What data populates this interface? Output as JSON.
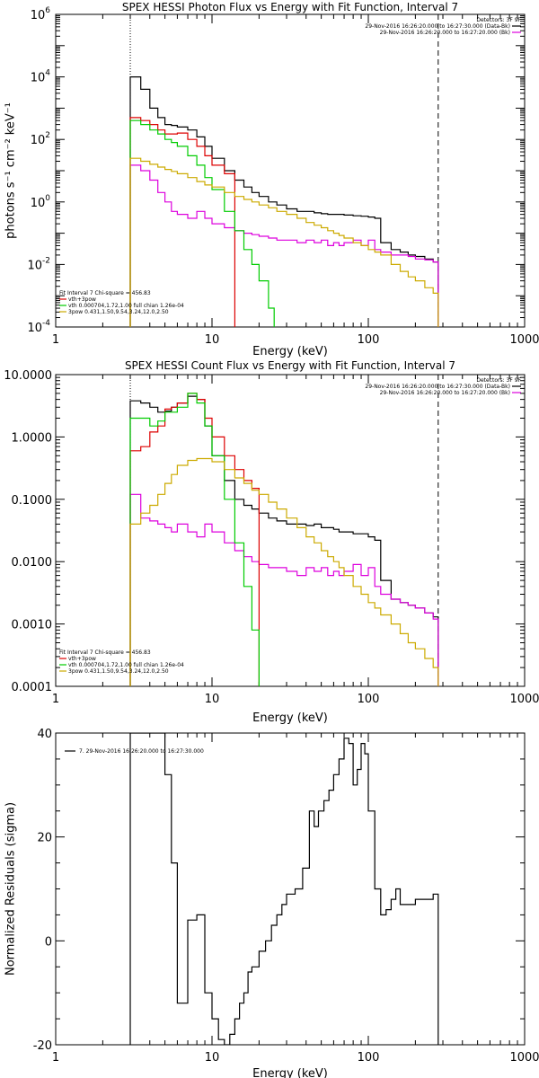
{
  "chart_data": [
    {
      "type": "line",
      "title": "SPEX HESSI Photon Flux vs Energy with Fit Function, Interval 7",
      "xlabel": "Energy (keV)",
      "ylabel": "photons s⁻¹ cm⁻² keV⁻¹",
      "xscale": "log",
      "yscale": "log",
      "xlim": [
        1,
        1000
      ],
      "ylim": [
        0.0001,
        1000000
      ],
      "xticks": [
        {
          "value": 1,
          "label": "1"
        },
        {
          "value": 10,
          "label": "10"
        },
        {
          "value": 100,
          "label": "100"
        },
        {
          "value": 1000,
          "label": "1000"
        }
      ],
      "yticks": [
        {
          "value": 0.0001,
          "base": "10",
          "exp": "-4"
        },
        {
          "value": 0.01,
          "base": "10",
          "exp": "-2"
        },
        {
          "value": 1,
          "base": "10",
          "exp": "0"
        },
        {
          "value": 100,
          "base": "10",
          "exp": "2"
        },
        {
          "value": 10000,
          "base": "10",
          "exp": "4"
        },
        {
          "value": 1000000,
          "base": "10",
          "exp": "6"
        }
      ],
      "vlines": [
        {
          "x": 3,
          "style": "dotted"
        },
        {
          "x": 280,
          "style": "dashed"
        }
      ],
      "legend_right": {
        "position": "top-right",
        "header": "Detectors: 3F 9F",
        "entries": [
          {
            "text": "29-Nov-2016 16:26:20.000 to 16:27:30.000 (Data-Bk)",
            "color": "#000000"
          },
          {
            "text": "29-Nov-2016 16:26:20.000 to 16:27:20.000 (Bk)",
            "color": "#dd00dd"
          }
        ]
      },
      "legend_left": {
        "position": "bottom-left",
        "header": "Fit Interval 7   Chi-square = 456.83",
        "entries": [
          {
            "text": "vth+3pow",
            "color": "#dd0000"
          },
          {
            "text": "vth 0.000704,1.72,1.00   full chian 1.26e-04",
            "color": "#00cc00"
          },
          {
            "text": "3pow 0.431,1.50,9.54,3.24,12.0,2.50",
            "color": "#ccaa00"
          }
        ]
      },
      "series": [
        {
          "color": "#000000",
          "x": [
            3,
            3.5,
            4,
            4.5,
            5,
            5.5,
            6,
            7,
            8,
            9,
            10,
            12,
            14,
            16,
            18,
            20,
            23,
            26,
            30,
            35,
            40,
            45,
            50,
            55,
            60,
            65,
            70,
            80,
            90,
            100,
            110,
            120,
            140,
            160,
            180,
            200,
            230,
            260,
            280
          ],
          "y": [
            10000,
            4000,
            1000,
            500,
            300,
            280,
            250,
            200,
            120,
            60,
            25,
            10,
            5,
            3,
            2,
            1.5,
            1,
            0.8,
            0.6,
            0.5,
            0.5,
            0.45,
            0.42,
            0.4,
            0.4,
            0.4,
            0.38,
            0.36,
            0.35,
            0.33,
            0.3,
            0.05,
            0.03,
            0.025,
            0.02,
            0.018,
            0.015,
            0.012,
            0.012
          ]
        },
        {
          "color": "#dd00dd",
          "x": [
            3,
            3.5,
            4,
            4.5,
            5,
            5.5,
            6,
            7,
            8,
            9,
            10,
            12,
            14,
            16,
            18,
            20,
            23,
            26,
            30,
            35,
            40,
            45,
            50,
            55,
            60,
            65,
            70,
            80,
            90,
            100,
            110,
            120,
            140,
            160,
            180,
            200,
            230,
            260,
            280
          ],
          "y": [
            15,
            10,
            5,
            2,
            1,
            0.5,
            0.4,
            0.3,
            0.5,
            0.3,
            0.2,
            0.15,
            0.12,
            0.1,
            0.09,
            0.08,
            0.07,
            0.06,
            0.06,
            0.05,
            0.06,
            0.05,
            0.06,
            0.04,
            0.05,
            0.04,
            0.05,
            0.06,
            0.04,
            0.06,
            0.03,
            0.025,
            0.02,
            0.02,
            0.018,
            0.015,
            0.014,
            0.012,
            0.012
          ]
        },
        {
          "color": "#dd0000",
          "x": [
            3,
            3.5,
            4,
            4.5,
            5,
            5.5,
            6,
            7,
            8,
            9,
            10,
            12,
            14
          ],
          "y": [
            500,
            400,
            300,
            200,
            150,
            150,
            160,
            100,
            60,
            30,
            15,
            8,
            5
          ]
        },
        {
          "color": "#00cc00",
          "x": [
            3,
            3.5,
            4,
            4.5,
            5,
            5.5,
            6,
            7,
            8,
            9,
            10,
            12,
            14,
            16,
            18,
            20,
            23,
            25
          ],
          "y": [
            400,
            300,
            200,
            150,
            100,
            80,
            60,
            30,
            15,
            6,
            2.5,
            0.5,
            0.12,
            0.03,
            0.01,
            0.003,
            0.0004,
            0.0001
          ]
        },
        {
          "color": "#ccaa00",
          "x": [
            3,
            3.5,
            4,
            4.5,
            5,
            5.5,
            6,
            7,
            8,
            9,
            10,
            12,
            14,
            16,
            18,
            20,
            23,
            26,
            30,
            35,
            40,
            45,
            50,
            55,
            60,
            65,
            70,
            80,
            90,
            100,
            110,
            120,
            140,
            160,
            180,
            200,
            230,
            260,
            280
          ],
          "y": [
            25,
            20,
            16,
            13,
            11,
            9.5,
            8,
            6,
            4.5,
            3.5,
            3,
            2,
            1.5,
            1.2,
            1,
            0.8,
            0.65,
            0.5,
            0.4,
            0.3,
            0.22,
            0.18,
            0.15,
            0.12,
            0.1,
            0.085,
            0.07,
            0.05,
            0.04,
            0.03,
            0.025,
            0.02,
            0.01,
            0.006,
            0.004,
            0.003,
            0.0018,
            0.0012,
            0.0009
          ]
        }
      ]
    },
    {
      "type": "line",
      "title": "SPEX HESSI Count Flux vs Energy with Fit Function, Interval 7",
      "xlabel": "Energy (keV)",
      "ylabel": "",
      "xscale": "log",
      "yscale": "log",
      "xlim": [
        1,
        1000
      ],
      "ylim": [
        0.0001,
        10
      ],
      "xticks": [
        {
          "value": 1,
          "label": "1"
        },
        {
          "value": 10,
          "label": "10"
        },
        {
          "value": 100,
          "label": "100"
        },
        {
          "value": 1000,
          "label": "1000"
        }
      ],
      "yticks": [
        {
          "value": 0.0001,
          "label": "0.0001"
        },
        {
          "value": 0.001,
          "label": "0.0010"
        },
        {
          "value": 0.01,
          "label": "0.0100"
        },
        {
          "value": 0.1,
          "label": "0.1000"
        },
        {
          "value": 1,
          "label": "1.0000"
        },
        {
          "value": 10,
          "label": "10.0000"
        }
      ],
      "vlines": [
        {
          "x": 3,
          "style": "dotted"
        },
        {
          "x": 280,
          "style": "dashed"
        }
      ],
      "legend_right": {
        "position": "top-right",
        "header": "Detectors: 3F 9F",
        "entries": [
          {
            "text": "29-Nov-2016 16:26:20.000 to 16:27:30.000 (Data-Bk)",
            "color": "#000000"
          },
          {
            "text": "29-Nov-2016 16:26:20.000 to 16:27:20.000 (Bk)",
            "color": "#dd00dd"
          }
        ]
      },
      "legend_left": {
        "position": "bottom-left",
        "header": "Fit Interval 7   Chi-square = 456.83",
        "entries": [
          {
            "text": "vth+3pow",
            "color": "#dd0000"
          },
          {
            "text": "vth 0.000704,1.72,1.00   full chian 1.26e-04",
            "color": "#00cc00"
          },
          {
            "text": "3pow 0.431,1.50,9.54,3.24,12.0,2.50",
            "color": "#ccaa00"
          }
        ]
      },
      "series": [
        {
          "color": "#000000",
          "x": [
            3,
            3.5,
            4,
            4.5,
            5,
            5.5,
            6,
            7,
            8,
            9,
            10,
            12,
            14,
            16,
            18,
            20,
            23,
            26,
            30,
            35,
            40,
            45,
            50,
            55,
            60,
            65,
            70,
            80,
            90,
            100,
            110,
            120,
            140,
            160,
            180,
            200,
            230,
            260,
            280
          ],
          "y": [
            3.8,
            3.5,
            3,
            2.5,
            2.6,
            3,
            3.5,
            4.5,
            4,
            1.5,
            0.5,
            0.2,
            0.1,
            0.08,
            0.07,
            0.06,
            0.05,
            0.045,
            0.04,
            0.04,
            0.038,
            0.04,
            0.035,
            0.035,
            0.033,
            0.03,
            0.03,
            0.028,
            0.028,
            0.025,
            0.022,
            0.005,
            0.0025,
            0.0022,
            0.002,
            0.0018,
            0.0015,
            0.0013,
            0.0013
          ]
        },
        {
          "color": "#dd00dd",
          "x": [
            3,
            3.5,
            4,
            4.5,
            5,
            5.5,
            6,
            7,
            8,
            9,
            10,
            12,
            14,
            16,
            18,
            20,
            23,
            26,
            30,
            35,
            40,
            45,
            50,
            55,
            60,
            65,
            70,
            80,
            90,
            100,
            110,
            120,
            140,
            160,
            180,
            200,
            230,
            260,
            280
          ],
          "y": [
            0.12,
            0.05,
            0.045,
            0.04,
            0.035,
            0.03,
            0.04,
            0.03,
            0.025,
            0.04,
            0.03,
            0.02,
            0.015,
            0.012,
            0.01,
            0.009,
            0.008,
            0.008,
            0.007,
            0.006,
            0.008,
            0.007,
            0.008,
            0.006,
            0.007,
            0.006,
            0.007,
            0.009,
            0.006,
            0.008,
            0.004,
            0.003,
            0.0025,
            0.0022,
            0.002,
            0.0018,
            0.0015,
            0.0012,
            0.0012
          ]
        },
        {
          "color": "#dd0000",
          "x": [
            3,
            3.5,
            4,
            4.5,
            5,
            5.5,
            6,
            7,
            8,
            9,
            10,
            12,
            14,
            16,
            18,
            20
          ],
          "y": [
            0.6,
            0.7,
            1.2,
            1.5,
            2.8,
            3,
            3.5,
            5,
            4,
            2,
            1,
            0.5,
            0.3,
            0.2,
            0.15,
            0.12
          ]
        },
        {
          "color": "#00cc00",
          "x": [
            3,
            3.5,
            4,
            4.5,
            5,
            5.5,
            6,
            7,
            8,
            9,
            10,
            12,
            14,
            16,
            18,
            20
          ],
          "y": [
            2,
            2,
            1.5,
            1.8,
            2.5,
            2.5,
            3,
            5,
            3.5,
            1.5,
            0.5,
            0.1,
            0.02,
            0.004,
            0.0008,
            0.0001
          ]
        },
        {
          "color": "#ccaa00",
          "x": [
            3,
            3.5,
            4,
            4.5,
            5,
            5.5,
            6,
            7,
            8,
            9,
            10,
            12,
            14,
            16,
            18,
            20,
            23,
            26,
            30,
            35,
            40,
            45,
            50,
            55,
            60,
            65,
            70,
            80,
            90,
            100,
            110,
            120,
            140,
            160,
            180,
            200,
            230,
            260,
            280
          ],
          "y": [
            0.04,
            0.06,
            0.08,
            0.12,
            0.18,
            0.25,
            0.35,
            0.42,
            0.45,
            0.45,
            0.4,
            0.3,
            0.22,
            0.18,
            0.14,
            0.12,
            0.09,
            0.07,
            0.05,
            0.035,
            0.025,
            0.02,
            0.015,
            0.012,
            0.01,
            0.008,
            0.006,
            0.004,
            0.003,
            0.0022,
            0.0018,
            0.0014,
            0.001,
            0.0007,
            0.0005,
            0.0004,
            0.00028,
            0.0002,
            0.00015
          ]
        }
      ]
    },
    {
      "type": "line",
      "title": "",
      "xlabel": "Energy (keV)",
      "ylabel": "Normalized Residuals (sigma)",
      "xscale": "log",
      "yscale": "linear",
      "xlim": [
        1,
        1000
      ],
      "ylim": [
        -20,
        40
      ],
      "xticks": [
        {
          "value": 1,
          "label": "1"
        },
        {
          "value": 10,
          "label": "10"
        },
        {
          "value": 100,
          "label": "100"
        },
        {
          "value": 1000,
          "label": "1000"
        }
      ],
      "yticks": [
        {
          "value": -20,
          "label": "-20"
        },
        {
          "value": 0,
          "label": "0"
        },
        {
          "value": 20,
          "label": "20"
        },
        {
          "value": 40,
          "label": "40"
        }
      ],
      "vlines": [],
      "legend_left": {
        "position": "top-left",
        "header": "",
        "entries": [
          {
            "text": "7. 29-Nov-2016 16:26:20.000 to 16:27:30.000",
            "color": "#000000"
          }
        ]
      },
      "series": [
        {
          "color": "#000000",
          "x": [
            3,
            4,
            5,
            5.5,
            6,
            7,
            8,
            9,
            10,
            11,
            12,
            13,
            14,
            15,
            16,
            17,
            18,
            20,
            22,
            24,
            26,
            28,
            30,
            34,
            38,
            42,
            45,
            48,
            52,
            56,
            60,
            65,
            70,
            75,
            80,
            85,
            90,
            95,
            100,
            110,
            120,
            130,
            140,
            150,
            160,
            180,
            200,
            230,
            260,
            280
          ],
          "y": [
            40,
            40,
            32,
            15,
            -12,
            4,
            5,
            -10,
            -15,
            -19,
            -20,
            -18,
            -15,
            -12,
            -10,
            -6,
            -5,
            -2,
            0,
            3,
            5,
            7,
            9,
            10,
            14,
            25,
            22,
            25,
            27,
            29,
            32,
            35,
            39,
            38,
            30,
            33,
            38,
            36,
            25,
            10,
            5,
            6,
            8,
            10,
            7,
            7,
            8,
            8,
            9,
            9
          ]
        }
      ]
    }
  ]
}
